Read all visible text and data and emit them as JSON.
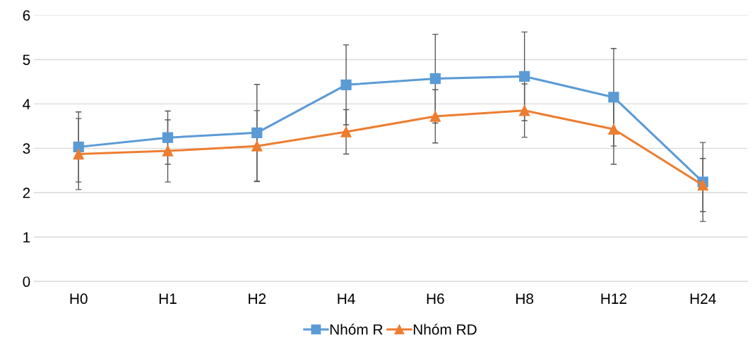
{
  "chart_data": {
    "type": "line",
    "categories": [
      "H0",
      "H1",
      "H2",
      "H4",
      "H6",
      "H8",
      "H12",
      "H24"
    ],
    "series": [
      {
        "name": "Nhóm R",
        "color": "#5b9bd5",
        "marker": "square",
        "values": [
          3.03,
          3.24,
          3.35,
          4.43,
          4.57,
          4.62,
          4.15,
          2.24
        ],
        "errors": [
          0.79,
          0.6,
          1.09,
          0.9,
          1.0,
          1.0,
          1.1,
          0.89
        ]
      },
      {
        "name": "Nhóm RD",
        "color": "#ed7d31",
        "marker": "triangle",
        "values": [
          2.87,
          2.94,
          3.05,
          3.37,
          3.72,
          3.85,
          3.43,
          2.17
        ],
        "errors": [
          0.8,
          0.7,
          0.8,
          0.5,
          0.6,
          0.6,
          0.79,
          0.6
        ]
      }
    ],
    "ylim": [
      0,
      6
    ],
    "yticks": [
      0,
      1,
      2,
      3,
      4,
      5,
      6
    ],
    "grid": "y",
    "legend": "bottom",
    "line_style": "solid"
  }
}
